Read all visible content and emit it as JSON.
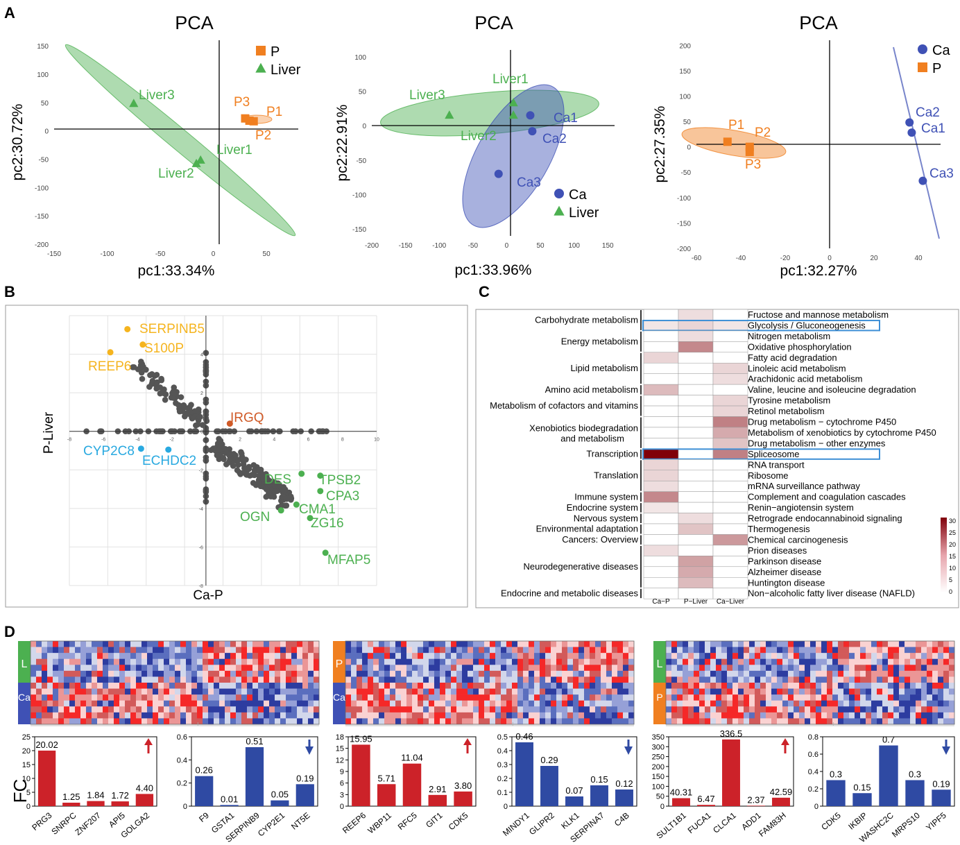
{
  "panel_labels": {
    "a": "A",
    "b": "B",
    "c": "C",
    "d": "D"
  },
  "colors": {
    "green": "#4cb050",
    "orange": "#f07f20",
    "blue": "#3f51b5",
    "red": "#cc2229",
    "yellow": "#f5b41e",
    "rust": "#d05a27",
    "cyan": "#29a9e0",
    "grey": "#555555",
    "pc_fc_up": "#cc2229",
    "pc_fc_down": "#2f4aa3"
  },
  "chart_data": [
    {
      "id": "pca1",
      "type": "scatter",
      "title": "PCA",
      "xlabel": "pc1:33.34%",
      "ylabel": "pc2:30.72%",
      "xlim": [
        -150,
        80
      ],
      "ylim": [
        -200,
        160
      ],
      "xticks": [
        -150,
        -100,
        -50,
        0,
        50
      ],
      "yticks": [
        150,
        100,
        50,
        0,
        -50,
        -100,
        -150,
        -200
      ],
      "legend": [
        {
          "label": "P",
          "marker": "square",
          "color": "#f07f20"
        },
        {
          "label": "Liver",
          "marker": "triangle",
          "color": "#4cb050"
        }
      ],
      "points": [
        {
          "label": "Liver3",
          "x": -75,
          "y": 48,
          "group": "Liver"
        },
        {
          "label": "Liver1",
          "x": -12,
          "y": -52,
          "group": "Liver"
        },
        {
          "label": "Liver2",
          "x": -16,
          "y": -58,
          "group": "Liver"
        },
        {
          "label": "P3",
          "x": 30,
          "y": 22,
          "group": "P"
        },
        {
          "label": "P1",
          "x": 38,
          "y": 17,
          "group": "P"
        },
        {
          "label": "P2",
          "x": 34,
          "y": 18,
          "group": "P"
        }
      ]
    },
    {
      "id": "pca2",
      "type": "scatter",
      "title": "PCA",
      "xlabel": "pc1:33.96%",
      "ylabel": "pc2:22.91%",
      "xlim": [
        -200,
        160
      ],
      "ylim": [
        -160,
        110
      ],
      "xticks": [
        -200,
        -150,
        -100,
        -50,
        0,
        50,
        100,
        150
      ],
      "yticks": [
        100,
        50,
        0,
        -50,
        -100,
        -150
      ],
      "legend": [
        {
          "label": "Ca",
          "marker": "circle",
          "color": "#3f51b5"
        },
        {
          "label": "Liver",
          "marker": "triangle",
          "color": "#4cb050"
        }
      ],
      "points": [
        {
          "label": "Liver3",
          "x": -85,
          "y": 15,
          "group": "Liver"
        },
        {
          "label": "Liver1",
          "x": 10,
          "y": 33,
          "group": "Liver"
        },
        {
          "label": "Liver2",
          "x": 10,
          "y": 15,
          "group": "Liver"
        },
        {
          "label": "Ca1",
          "x": 35,
          "y": 15,
          "group": "Ca"
        },
        {
          "label": "Ca2",
          "x": 38,
          "y": -8,
          "group": "Ca"
        },
        {
          "label": "Ca3",
          "x": -12,
          "y": -70,
          "group": "Ca"
        }
      ]
    },
    {
      "id": "pca3",
      "type": "scatter",
      "title": "PCA",
      "xlabel": "pc1:32.27%",
      "ylabel": "pc2:27.35%",
      "xlim": [
        -60,
        50
      ],
      "ylim": [
        -200,
        210
      ],
      "xticks": [
        -60,
        -40,
        -20,
        0,
        20,
        40
      ],
      "yticks": [
        200,
        150,
        100,
        50,
        0,
        -50,
        -100,
        -150,
        -200
      ],
      "legend": [
        {
          "label": "Ca",
          "marker": "circle",
          "color": "#3f51b5"
        },
        {
          "label": "P",
          "marker": "square",
          "color": "#f07f20"
        }
      ],
      "points": [
        {
          "label": "P1",
          "x": -46,
          "y": 10,
          "group": "P"
        },
        {
          "label": "P2",
          "x": -36,
          "y": 0,
          "group": "P"
        },
        {
          "label": "P3",
          "x": -36,
          "y": -10,
          "group": "P"
        },
        {
          "label": "Ca2",
          "x": 36,
          "y": 48,
          "group": "Ca"
        },
        {
          "label": "Ca1",
          "x": 37,
          "y": 28,
          "group": "Ca"
        },
        {
          "label": "Ca3",
          "x": 42,
          "y": -67,
          "group": "Ca"
        }
      ]
    },
    {
      "id": "quad",
      "type": "scatter",
      "xlabel": "Ca-P",
      "ylabel": "P-Liver",
      "xlim": [
        -8,
        10
      ],
      "ylim": [
        -8,
        6
      ],
      "xticks": [
        -8,
        -6,
        -4,
        -2,
        0,
        2,
        4,
        6,
        8,
        10
      ],
      "yticks": [
        4,
        2,
        0,
        -2,
        -4,
        -6,
        -8
      ],
      "labeled_points": [
        {
          "label": "SERPINB5",
          "x": -4.6,
          "y": 5.3,
          "group": "yellow"
        },
        {
          "label": "S100P",
          "x": -3.7,
          "y": 4.5,
          "group": "yellow"
        },
        {
          "label": "REEP6",
          "x": -5.6,
          "y": 4.1,
          "group": "yellow"
        },
        {
          "label": "IRGQ",
          "x": 1.4,
          "y": 0.4,
          "group": "rust"
        },
        {
          "label": "CYP2C8",
          "x": -3.8,
          "y": -0.9,
          "group": "cyan"
        },
        {
          "label": "ECHDC2",
          "x": -2.2,
          "y": -0.95,
          "group": "cyan"
        },
        {
          "label": "DES",
          "x": 5.6,
          "y": -2.2,
          "group": "green"
        },
        {
          "label": "TPSB2",
          "x": 6.7,
          "y": -2.3,
          "group": "green"
        },
        {
          "label": "CPA3",
          "x": 6.7,
          "y": -3.1,
          "group": "green"
        },
        {
          "label": "CMA1",
          "x": 5.3,
          "y": -3.8,
          "group": "green"
        },
        {
          "label": "OGN",
          "x": 4.4,
          "y": -4.1,
          "group": "green"
        },
        {
          "label": "ZG16",
          "x": 6.1,
          "y": -4.5,
          "group": "green"
        },
        {
          "label": "MFAP5",
          "x": 7.0,
          "y": -6.3,
          "group": "green"
        }
      ]
    },
    {
      "id": "heatmap_c",
      "type": "heatmap",
      "columns": [
        "Ca−P",
        "P−Liver",
        "Ca−Liver"
      ],
      "colorbar": {
        "min": 0,
        "max": 30,
        "ticks": [
          "30",
          "25",
          "20",
          "15",
          "10",
          "5",
          "0"
        ]
      },
      "rows": [
        {
          "pathway": "Fructose and mannose metabolism",
          "values": [
            0,
            4,
            0
          ]
        },
        {
          "pathway": "Glycolysis / Gluconeogenesis",
          "values": [
            3,
            5,
            3
          ],
          "boxed": true
        },
        {
          "pathway": "Nitrogen metabolism",
          "values": [
            0,
            4,
            0
          ]
        },
        {
          "pathway": "Oxidative phosphorylation",
          "values": [
            0,
            14,
            0
          ]
        },
        {
          "pathway": "Fatty acid degradation",
          "values": [
            5,
            0,
            0
          ]
        },
        {
          "pathway": "Linoleic acid metabolism",
          "values": [
            0,
            0,
            5
          ]
        },
        {
          "pathway": "Arachidonic acid metabolism",
          "values": [
            0,
            0,
            4
          ]
        },
        {
          "pathway": "Valine, leucine and isoleucine degradation",
          "values": [
            8,
            0,
            0
          ]
        },
        {
          "pathway": "Tyrosine metabolism",
          "values": [
            0,
            0,
            5
          ]
        },
        {
          "pathway": "Retinol metabolism",
          "values": [
            0,
            0,
            5
          ]
        },
        {
          "pathway": "Drug metabolism − cytochrome P450",
          "values": [
            0,
            0,
            15
          ]
        },
        {
          "pathway": "Metabolism of xenobiotics by cytochrome P450",
          "values": [
            0,
            0,
            10
          ]
        },
        {
          "pathway": "Drug metabolism − other enzymes",
          "values": [
            0,
            0,
            7
          ]
        },
        {
          "pathway": "Spliceosome",
          "values": [
            30,
            0,
            15
          ],
          "boxed": true
        },
        {
          "pathway": "RNA transport",
          "values": [
            5,
            0,
            0
          ]
        },
        {
          "pathway": "Ribosome",
          "values": [
            5,
            0,
            0
          ]
        },
        {
          "pathway": "mRNA surveillance pathway",
          "values": [
            4,
            0,
            0
          ]
        },
        {
          "pathway": "Complement and coagulation cascades",
          "values": [
            14,
            0,
            0
          ]
        },
        {
          "pathway": "Renin−angiotensin system",
          "values": [
            3,
            0,
            0
          ]
        },
        {
          "pathway": "Retrograde endocannabinoid signaling",
          "values": [
            0,
            4,
            0
          ]
        },
        {
          "pathway": "Thermogenesis",
          "values": [
            0,
            7,
            0
          ]
        },
        {
          "pathway": "Chemical carcinogenesis",
          "values": [
            0,
            0,
            12
          ]
        },
        {
          "pathway": "Prion diseases",
          "values": [
            4,
            0,
            0
          ]
        },
        {
          "pathway": "Parkinson disease",
          "values": [
            0,
            11,
            0
          ]
        },
        {
          "pathway": "Alzheimer disease",
          "values": [
            0,
            10,
            0
          ]
        },
        {
          "pathway": "Huntington disease",
          "values": [
            0,
            8,
            0
          ]
        },
        {
          "pathway": "Non−alcoholic fatty liver disease (NAFLD)",
          "values": [
            0,
            0,
            0
          ]
        }
      ],
      "categories": [
        {
          "label": "Carbohydrate metabolism",
          "start": 0,
          "end": 1
        },
        {
          "label": "Energy metabolism",
          "start": 2,
          "end": 3
        },
        {
          "label": "Lipid metabolism",
          "start": 4,
          "end": 6
        },
        {
          "label": "Amino acid metabolism",
          "start": 7,
          "end": 7
        },
        {
          "label": "Metabolism of cofactors and vitamins",
          "start": 8,
          "end": 9
        },
        {
          "label": "Xenobiotics biodegradation",
          "label2": "and metabolism",
          "start": 10,
          "end": 12
        },
        {
          "label": "Transcription",
          "start": 13,
          "end": 13
        },
        {
          "label": "Translation",
          "start": 14,
          "end": 16
        },
        {
          "label": "Immune system",
          "start": 17,
          "end": 17
        },
        {
          "label": "Endocrine system",
          "start": 18,
          "end": 18
        },
        {
          "label": "Nervous system",
          "start": 19,
          "end": 19
        },
        {
          "label": "Environmental adaptation",
          "start": 20,
          "end": 20
        },
        {
          "label": "Cancers: Overview",
          "start": 21,
          "end": 21
        },
        {
          "label": "Neurodegenerative diseases",
          "start": 22,
          "end": 25
        },
        {
          "label": "Endocrine and metabolic diseases",
          "start": 26,
          "end": 26
        }
      ]
    },
    {
      "id": "fc_bars",
      "type": "bar",
      "ylabel": "FC",
      "heatmaps": [
        {
          "top": "L",
          "bottom": "Ca"
        },
        {
          "top": "P",
          "bottom": "Ca"
        },
        {
          "top": "L",
          "bottom": "P"
        }
      ],
      "panels": [
        {
          "direction": "up",
          "ylim": [
            0,
            25
          ],
          "yticks": [
            "0",
            "5",
            "10",
            "15",
            "20",
            "25"
          ],
          "categories": [
            "PRG3",
            "SNRPC",
            "ZNF207",
            "API5",
            "GOLGA2"
          ],
          "values": [
            20.02,
            1.25,
            1.84,
            1.72,
            4.4
          ],
          "labels": [
            "20.02",
            "1.25",
            "1.84",
            "1.72",
            "4.40"
          ]
        },
        {
          "direction": "down",
          "ylim": [
            0,
            0.6
          ],
          "yticks": [
            "0",
            "0.2",
            "0.4",
            "0.6"
          ],
          "categories": [
            "F9",
            "GSTA1",
            "SERPINB9",
            "CYP2E1",
            "NT5E"
          ],
          "values": [
            0.26,
            0.01,
            0.51,
            0.05,
            0.19
          ],
          "labels": [
            "0.26",
            "0.01",
            "0.51",
            "0.05",
            "0.19"
          ]
        },
        {
          "direction": "up",
          "ylim": [
            0,
            18
          ],
          "yticks": [
            "0",
            "3",
            "6",
            "9",
            "12",
            "15",
            "18"
          ],
          "categories": [
            "REEP6",
            "WBP11",
            "RFC5",
            "GIT1",
            "CDK5"
          ],
          "values": [
            15.95,
            5.71,
            11.04,
            2.91,
            3.8
          ],
          "labels": [
            "15.95",
            "5.71",
            "11.04",
            "2.91",
            "3.80"
          ]
        },
        {
          "direction": "down",
          "ylim": [
            0,
            0.5
          ],
          "yticks": [
            "0",
            "0.1",
            "0.2",
            "0.3",
            "0.4",
            "0.5"
          ],
          "categories": [
            "MINDY1",
            "GLIPR2",
            "KLK1",
            "SERPINA7",
            "C4B"
          ],
          "values": [
            0.46,
            0.29,
            0.07,
            0.15,
            0.12
          ],
          "labels": [
            "0.46",
            "0.29",
            "0.07",
            "0.15",
            "0.12"
          ]
        },
        {
          "direction": "up",
          "ylim": [
            0,
            350
          ],
          "yticks": [
            "0",
            "50",
            "100",
            "150",
            "200",
            "250",
            "300",
            "350"
          ],
          "categories": [
            "SULT1B1",
            "FUCA1",
            "CLCA1",
            "ADD1",
            "FAM83H"
          ],
          "values": [
            40.31,
            6.47,
            336.5,
            2.37,
            42.59
          ],
          "labels": [
            "40.31",
            "6.47",
            "336.5",
            "2.37",
            "42.59"
          ]
        },
        {
          "direction": "down",
          "ylim": [
            0,
            0.8
          ],
          "yticks": [
            "0",
            "0.2",
            "0.4",
            "0.6",
            "0.8"
          ],
          "categories": [
            "CDK5",
            "IKBIP",
            "WASHC2C",
            "MRPS10",
            "YIPF5"
          ],
          "values": [
            0.3,
            0.15,
            0.7,
            0.3,
            0.19
          ],
          "labels": [
            "0.3",
            "0.15",
            "0.7",
            "0.3",
            "0.19"
          ]
        }
      ]
    }
  ]
}
